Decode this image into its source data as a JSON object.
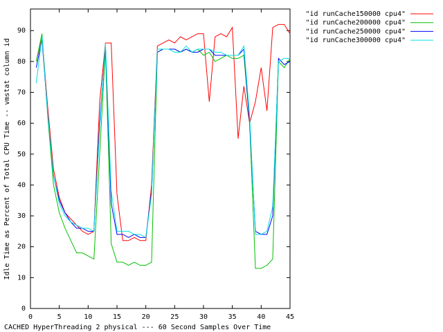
{
  "chart_data": {
    "type": "line",
    "xlabel": "CACHED HyperThreading 2 physical --- 60 Second Samples Over Time",
    "ylabel": "Idle Time as Percent of Total CPU Time -- vmstat column id",
    "x": [
      1,
      2,
      3,
      4,
      5,
      6,
      7,
      8,
      9,
      10,
      11,
      12,
      13,
      14,
      15,
      16,
      17,
      18,
      19,
      20,
      21,
      22,
      23,
      24,
      25,
      26,
      27,
      28,
      29,
      30,
      31,
      32,
      33,
      34,
      35,
      36,
      37,
      38,
      39,
      40,
      41,
      42,
      43,
      44,
      45
    ],
    "xlim": [
      0,
      45
    ],
    "xticks": [
      0,
      5,
      10,
      15,
      20,
      25,
      30,
      35,
      40,
      45
    ],
    "ylim": [
      0,
      97
    ],
    "yticks": [
      0,
      10,
      20,
      30,
      40,
      50,
      60,
      70,
      80,
      90
    ],
    "legend": "top-right",
    "series": [
      {
        "name": "\"id runCache150000 cpu4\"",
        "color": "#ff0000",
        "values": [
          80,
          88,
          65,
          45,
          36,
          31,
          29,
          27,
          25,
          24,
          25,
          67,
          86,
          86,
          37,
          22,
          22,
          23,
          22,
          22,
          40,
          85,
          86,
          87,
          86,
          88,
          87,
          88,
          89,
          89,
          67,
          88,
          89,
          88,
          91,
          55,
          72,
          60,
          67,
          78,
          64,
          91,
          92,
          92,
          89
        ]
      },
      {
        "name": "\"id runCache200000 cpu4\"",
        "color": "#00c000",
        "values": [
          80,
          89,
          62,
          40,
          31,
          26,
          22,
          18,
          18,
          17,
          16,
          50,
          84,
          21,
          15,
          15,
          14,
          15,
          14,
          14,
          15,
          83,
          84,
          84,
          84,
          83,
          84,
          83,
          84,
          82,
          83,
          80,
          81,
          82,
          81,
          81,
          82,
          60,
          13,
          13,
          14,
          16,
          80,
          78,
          81
        ]
      },
      {
        "name": "\"id runCache250000 cpu4\"",
        "color": "#0000ff",
        "values": [
          78,
          87,
          63,
          43,
          35,
          31,
          28,
          26,
          26,
          25,
          25,
          60,
          85,
          34,
          24,
          24,
          23,
          24,
          23,
          23,
          38,
          83,
          84,
          84,
          84,
          83,
          84,
          83,
          83,
          84,
          84,
          82,
          82,
          82,
          82,
          82,
          84,
          60,
          25,
          24,
          24,
          30,
          81,
          79,
          80
        ]
      },
      {
        "name": "\"id runCache300000 cpu4\"",
        "color": "#00e0e0",
        "values": [
          73,
          88,
          63,
          43,
          34,
          30,
          28,
          27,
          26,
          26,
          25,
          58,
          86,
          38,
          25,
          25,
          25,
          24,
          24,
          23,
          37,
          84,
          84,
          84,
          83,
          83,
          85,
          83,
          84,
          84,
          84,
          83,
          83,
          82,
          82,
          82,
          85,
          62,
          24,
          24,
          25,
          33,
          80,
          81,
          81
        ]
      }
    ]
  }
}
